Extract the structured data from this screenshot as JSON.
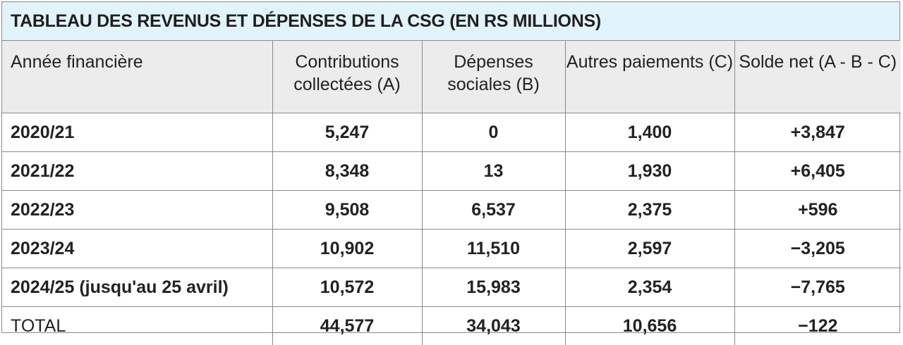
{
  "title": "TABLEAU DES REVENUS ET DÉPENSES DE LA CSG (EN RS MILLIONS)",
  "columns": [
    "Année financière",
    "Contributions collectées (A)",
    "Dépenses sociales (B)",
    "Autres paiements (C)",
    "Solde net (A - B - C)"
  ],
  "rows": [
    [
      "2020/21",
      "5,247",
      "0",
      "1,400",
      "+3,847"
    ],
    [
      "2021/22",
      "8,348",
      "13",
      "1,930",
      "+6,405"
    ],
    [
      "2022/23",
      "9,508",
      "6,537",
      "2,375",
      "+596"
    ],
    [
      "2023/24",
      "10,902",
      "11,510",
      "2,597",
      "−3,205"
    ],
    [
      "2024/25 (jusqu'au 25 avril)",
      "10,572",
      "15,983",
      "2,354",
      "−7,765"
    ],
    [
      "TOTAL",
      "44,577",
      "34,043",
      "10,656",
      "−122"
    ]
  ],
  "colors": {
    "title_bg": "#e2f4fb",
    "header_bg": "#ececec",
    "border": "#8a8a8a"
  }
}
